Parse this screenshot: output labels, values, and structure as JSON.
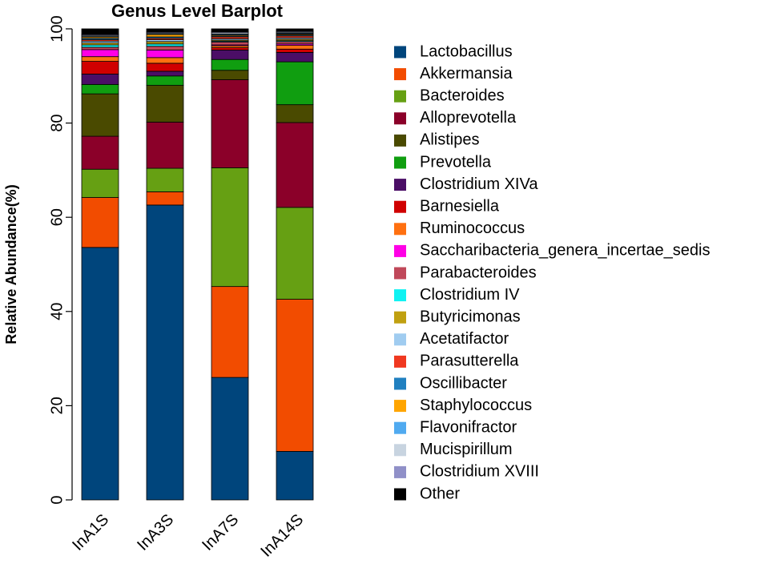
{
  "chart_data": {
    "type": "bar",
    "stacked": true,
    "title": "Genus Level Barplot",
    "xlabel": "",
    "ylabel": "Relative Abundance(%)",
    "ylim": [
      0,
      100
    ],
    "yticks": [
      0,
      20,
      40,
      60,
      80,
      100
    ],
    "categories": [
      "InA1S",
      "InA3S",
      "InA7S",
      "InA14S"
    ],
    "legend_position": "right",
    "series": [
      {
        "name": "Lactobacillus",
        "color": "#00457C",
        "values": [
          53.6,
          62.6,
          26.0,
          10.3
        ]
      },
      {
        "name": "Akkermansia",
        "color": "#F24C00",
        "values": [
          10.6,
          2.8,
          19.3,
          32.3
        ]
      },
      {
        "name": "Bacteroides",
        "color": "#66A013",
        "values": [
          6.0,
          5.0,
          25.2,
          19.5
        ]
      },
      {
        "name": "Alloprevotella",
        "color": "#8B0029",
        "values": [
          7.0,
          9.8,
          18.7,
          18.0
        ]
      },
      {
        "name": "Alistipes",
        "color": "#4A4A00",
        "values": [
          9.0,
          7.8,
          2.0,
          3.8
        ]
      },
      {
        "name": "Prevotella",
        "color": "#109E10",
        "values": [
          2.0,
          2.0,
          2.3,
          9.1
        ]
      },
      {
        "name": "Clostridium XIVa",
        "color": "#4B0E66",
        "values": [
          2.2,
          1.0,
          2.0,
          2.0
        ]
      },
      {
        "name": "Barnesiella",
        "color": "#D00000",
        "values": [
          2.7,
          1.7,
          0.5,
          0.7
        ]
      },
      {
        "name": "Ruminococcus",
        "color": "#FF7010",
        "values": [
          1.0,
          1.2,
          0.4,
          0.8
        ]
      },
      {
        "name": "Saccharibacteria_genera_incertae_sedis",
        "color": "#FF00E6",
        "values": [
          1.5,
          1.6,
          0.2,
          0.3
        ]
      },
      {
        "name": "Parabacteroides",
        "color": "#C0485A",
        "values": [
          0.5,
          0.8,
          0.6,
          0.5
        ]
      },
      {
        "name": "Clostridium IV",
        "color": "#10F2F2",
        "values": [
          0.5,
          0.5,
          0.2,
          0.2
        ]
      },
      {
        "name": "Butyricimonas",
        "color": "#C0A010",
        "values": [
          0.4,
          0.5,
          0.2,
          0.3
        ]
      },
      {
        "name": "Acetatifactor",
        "color": "#A0CCF0",
        "values": [
          0.4,
          0.4,
          0.3,
          0.3
        ]
      },
      {
        "name": "Parasutterella",
        "color": "#F03820",
        "values": [
          0.3,
          0.3,
          0.4,
          0.4
        ]
      },
      {
        "name": "Oscillibacter",
        "color": "#2080C0",
        "values": [
          0.3,
          0.3,
          0.2,
          0.2
        ]
      },
      {
        "name": "Staphylococcus",
        "color": "#FFA500",
        "values": [
          0.3,
          0.5,
          0.2,
          0.2
        ]
      },
      {
        "name": "Flavonifractor",
        "color": "#50AAF0",
        "values": [
          0.2,
          0.2,
          0.2,
          0.2
        ]
      },
      {
        "name": "Mucispirillum",
        "color": "#C8D4E0",
        "values": [
          0.2,
          0.2,
          0.3,
          0.2
        ]
      },
      {
        "name": "Clostridium XVIII",
        "color": "#9090C8",
        "values": [
          0.2,
          0.2,
          0.2,
          0.2
        ]
      },
      {
        "name": "Other",
        "color": "#000000",
        "values": [
          1.1,
          0.6,
          0.6,
          0.5
        ]
      }
    ]
  }
}
